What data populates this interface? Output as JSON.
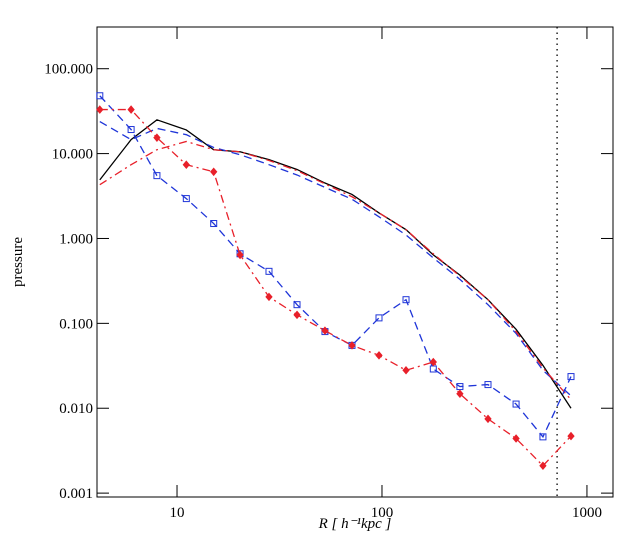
{
  "chart_data": {
    "type": "line",
    "xlabel": "R [ h⁻¹kpc ]",
    "ylabel": "pressure",
    "xscale": "log",
    "yscale": "log",
    "xlim": [
      4.07,
      1340
    ],
    "ylim": [
      0.0009,
      310
    ],
    "xticks": [
      10,
      100,
      1000
    ],
    "yticks": [
      {
        "value": 100,
        "label": "100.000"
      },
      {
        "value": 10,
        "label": "10.000"
      },
      {
        "value": 1,
        "label": "1.000"
      },
      {
        "value": 0.1,
        "label": "0.100"
      },
      {
        "value": 0.01,
        "label": "0.010"
      },
      {
        "value": 0.001,
        "label": "0.001"
      }
    ],
    "vline": {
      "x": 715,
      "color": "#000000",
      "style": "dot"
    },
    "x": [
      4.2,
      5.97,
      7.98,
      11.1,
      15.1,
      20.3,
      28.1,
      38.5,
      52.7,
      71.4,
      96.7,
      131,
      178,
      240,
      329,
      451,
      610,
      836
    ],
    "series": [
      {
        "color": "#000000",
        "style": "solid",
        "marker": "none",
        "values": [
          4.9,
          14.6,
          25,
          19,
          11.1,
          10.5,
          8.5,
          6.5,
          4.5,
          3.3,
          2.0,
          1.27,
          0.64,
          0.37,
          0.19,
          0.085,
          0.032,
          0.01
        ]
      },
      {
        "color": "#1f35d8",
        "style": "dash",
        "marker": "none",
        "values": [
          23.8,
          14.6,
          19.8,
          16.7,
          11.8,
          9.7,
          7.4,
          5.6,
          4.0,
          2.9,
          1.8,
          1.1,
          0.59,
          0.33,
          0.166,
          0.076,
          0.028,
          0.014
        ]
      },
      {
        "color": "#e8202a",
        "style": "dashdot",
        "marker": "none",
        "values": [
          4.3,
          7.4,
          11.1,
          13.9,
          11.1,
          10.5,
          8.3,
          6.3,
          4.4,
          3.1,
          2.0,
          1.27,
          0.66,
          0.36,
          0.19,
          0.08,
          0.03,
          0.0126
        ]
      },
      {
        "color": "#1f35d8",
        "style": "dash",
        "marker": "square",
        "values": [
          48,
          19.2,
          5.5,
          2.95,
          1.5,
          0.66,
          0.41,
          0.166,
          0.08,
          0.055,
          0.116,
          0.19,
          0.029,
          0.018,
          0.019,
          0.0112,
          0.0046,
          0.0236
        ]
      },
      {
        "color": "#e8202a",
        "style": "dashdot",
        "marker": "diamond",
        "values": [
          33,
          33,
          15.4,
          7.4,
          6.1,
          0.64,
          0.205,
          0.126,
          0.082,
          0.055,
          0.042,
          0.028,
          0.035,
          0.0148,
          0.0075,
          0.0044,
          0.0021,
          0.0047
        ]
      }
    ]
  }
}
